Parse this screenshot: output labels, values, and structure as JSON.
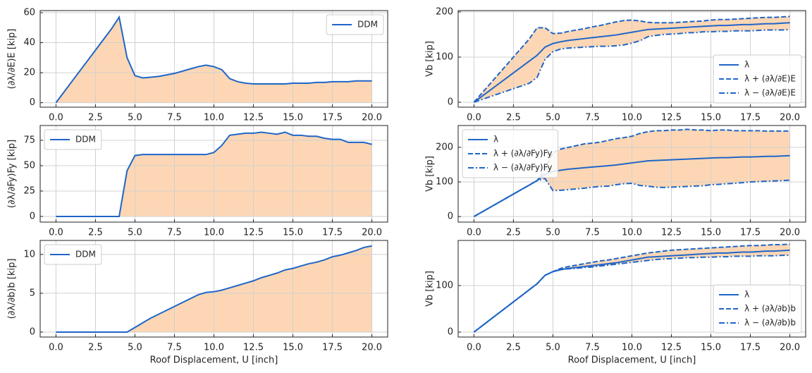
{
  "chart_data": [
    {
      "type": "line",
      "ylabel": "(∂λ/∂E)E [kip]",
      "x": [
        0,
        0.5,
        1,
        1.5,
        2,
        2.5,
        3,
        3.5,
        4,
        4.5,
        5,
        5.5,
        6,
        6.5,
        7,
        7.5,
        8,
        8.5,
        9,
        9.5,
        10,
        10.5,
        11,
        11.5,
        12,
        12.5,
        13,
        13.5,
        14,
        14.5,
        15,
        15.5,
        16,
        16.5,
        17,
        17.5,
        18,
        18.5,
        19,
        19.5,
        20
      ],
      "series": [
        {
          "name": "DDM",
          "color": "#1f66c8",
          "linestyle": "solid",
          "values": [
            0,
            7,
            14,
            21,
            28,
            35,
            42,
            49,
            57,
            30,
            18,
            16.5,
            17,
            17.5,
            18.5,
            19.5,
            21,
            22.5,
            24,
            25,
            24,
            22,
            16,
            14,
            13,
            12.5,
            12.5,
            12.5,
            12.5,
            12.5,
            13,
            13,
            13,
            13.5,
            13.5,
            14,
            14,
            14,
            14.5,
            14.5,
            14.5
          ]
        }
      ],
      "fill": "to_zero",
      "fill_color": "#fdd7b5",
      "xlim": [
        -1,
        21
      ],
      "xticks": [
        {
          "value": 0,
          "label": "0.0"
        },
        2.5,
        {
          "value": 5,
          "label": "5.0"
        },
        7.5,
        {
          "value": 10,
          "label": "10.0"
        },
        12.5,
        {
          "value": 15,
          "label": "15.0"
        },
        17.5,
        {
          "value": 20,
          "label": "20.0"
        }
      ],
      "ylim": [
        -3,
        61.4
      ],
      "yticks": [
        0,
        20,
        40,
        60
      ],
      "grid": true,
      "legend": "upper right"
    },
    {
      "type": "line",
      "ylabel": "Vb [kip]",
      "x": [
        0,
        0.5,
        1,
        1.5,
        2,
        2.5,
        3,
        3.5,
        4,
        4.5,
        5,
        5.5,
        6,
        6.5,
        7,
        7.5,
        8,
        8.5,
        9,
        9.5,
        10,
        10.5,
        11,
        11.5,
        12,
        12.5,
        13,
        13.5,
        14,
        14.5,
        15,
        15.5,
        16,
        16.5,
        17,
        17.5,
        18,
        18.5,
        19,
        19.5,
        20
      ],
      "series": [
        {
          "name": "λ",
          "color": "#1f66c8",
          "linestyle": "solid",
          "values": [
            0,
            13,
            26,
            39,
            52,
            65,
            78,
            91,
            104,
            122,
            130,
            134,
            137,
            139,
            141,
            143,
            145,
            147,
            149,
            152,
            155,
            158,
            161,
            162,
            163,
            164,
            165,
            166,
            167,
            168,
            169,
            170,
            170,
            171,
            172,
            172,
            173,
            174,
            174,
            175,
            176
          ]
        },
        {
          "name": "λ + (∂λ/∂E)E",
          "color": "#1f66c8",
          "linestyle": "dashed",
          "values": [
            0,
            20,
            40,
            60,
            80,
            100,
            120,
            140,
            165,
            165,
            152,
            153,
            157,
            160,
            163,
            167,
            170,
            174,
            178,
            181,
            182,
            180,
            177,
            176,
            176,
            176,
            177,
            178,
            179,
            180,
            182,
            183,
            183,
            184,
            185,
            186,
            187,
            188,
            188,
            189,
            190
          ]
        },
        {
          "name": "λ − (∂λ/∂E)E",
          "color": "#1f66c8",
          "linestyle": "dashdot",
          "values": [
            0,
            6,
            12,
            18,
            24,
            30,
            36,
            42,
            55,
            95,
            112,
            118,
            120,
            121,
            122,
            123,
            124,
            124,
            125,
            127,
            131,
            136,
            145,
            148,
            150,
            151,
            152,
            154,
            154,
            156,
            156,
            157,
            157,
            158,
            158,
            158,
            159,
            160,
            160,
            160,
            161
          ]
        }
      ],
      "fill": "between",
      "fill_between": [
        1,
        2
      ],
      "fill_color": "#fdd7b5",
      "xlim": [
        -1,
        21
      ],
      "xticks": [
        {
          "value": 0,
          "label": "0.0"
        },
        2.5,
        {
          "value": 5,
          "label": "5.0"
        },
        7.5,
        {
          "value": 10,
          "label": "10.0"
        },
        12.5,
        {
          "value": 15,
          "label": "15.0"
        },
        17.5,
        {
          "value": 20,
          "label": "20.0"
        }
      ],
      "ylim": [
        -11,
        203
      ],
      "yticks": [
        0,
        100,
        200
      ],
      "grid": true,
      "legend": "lower right"
    },
    {
      "type": "line",
      "ylabel": "(∂λ/∂Fy)Fy [kip]",
      "x": [
        0,
        0.5,
        1,
        1.5,
        2,
        2.5,
        3,
        3.5,
        4,
        4.5,
        5,
        5.5,
        6,
        6.5,
        7,
        7.5,
        8,
        8.5,
        9,
        9.5,
        10,
        10.5,
        11,
        11.5,
        12,
        12.5,
        13,
        13.5,
        14,
        14.5,
        15,
        15.5,
        16,
        16.5,
        17,
        17.5,
        18,
        18.5,
        19,
        19.5,
        20
      ],
      "series": [
        {
          "name": "DDM",
          "color": "#1f66c8",
          "linestyle": "solid",
          "values": [
            0,
            0,
            0,
            0,
            0,
            0,
            0,
            0,
            0,
            45,
            60,
            61,
            61,
            61,
            61,
            61,
            61,
            61,
            61,
            61,
            63,
            70,
            80,
            81,
            82,
            82,
            83,
            82,
            81,
            83,
            80,
            80,
            79,
            79,
            77,
            76,
            76,
            73,
            73,
            73,
            71
          ]
        }
      ],
      "fill": "to_zero",
      "fill_color": "#fdd7b5",
      "xlim": [
        -1,
        21
      ],
      "xticks": [
        {
          "value": 0,
          "label": "0.0"
        },
        2.5,
        {
          "value": 5,
          "label": "5.0"
        },
        7.5,
        {
          "value": 10,
          "label": "10.0"
        },
        12.5,
        {
          "value": 15,
          "label": "15.0"
        },
        17.5,
        {
          "value": 20,
          "label": "20.0"
        }
      ],
      "ylim": [
        -5.6,
        89.6
      ],
      "yticks": [
        0,
        25,
        50,
        75
      ],
      "grid": true,
      "legend": "upper left"
    },
    {
      "type": "line",
      "ylabel": "Vb [kip]",
      "x": [
        0,
        0.5,
        1,
        1.5,
        2,
        2.5,
        3,
        3.5,
        4,
        4.5,
        5,
        5.5,
        6,
        6.5,
        7,
        7.5,
        8,
        8.5,
        9,
        9.5,
        10,
        10.5,
        11,
        11.5,
        12,
        12.5,
        13,
        13.5,
        14,
        14.5,
        15,
        15.5,
        16,
        16.5,
        17,
        17.5,
        18,
        18.5,
        19,
        19.5,
        20
      ],
      "series": [
        {
          "name": "λ",
          "color": "#1f66c8",
          "linestyle": "solid",
          "values": [
            0,
            13,
            26,
            39,
            52,
            65,
            78,
            91,
            104,
            122,
            130,
            134,
            137,
            139,
            141,
            143,
            145,
            147,
            149,
            152,
            155,
            158,
            161,
            162,
            163,
            164,
            165,
            166,
            167,
            168,
            169,
            170,
            170,
            171,
            172,
            172,
            173,
            174,
            174,
            175,
            176
          ]
        },
        {
          "name": "λ + (∂λ/∂Fy)Fy",
          "color": "#1f66c8",
          "linestyle": "dashed",
          "values": [
            0,
            13,
            26,
            39,
            52,
            65,
            78,
            91,
            104,
            135,
            185,
            195,
            200,
            205,
            210,
            212,
            215,
            220,
            225,
            228,
            232,
            240,
            245,
            248,
            248,
            250,
            250,
            252,
            250,
            250,
            248,
            250,
            250,
            248,
            248,
            248,
            248,
            247,
            247,
            247,
            247
          ]
        },
        {
          "name": "λ − (∂λ/∂Fy)Fy",
          "color": "#1f66c8",
          "linestyle": "dashdot",
          "values": [
            0,
            13,
            26,
            39,
            52,
            65,
            78,
            91,
            104,
            110,
            75,
            76,
            78,
            80,
            82,
            85,
            87,
            88,
            92,
            95,
            96,
            90,
            88,
            85,
            84,
            85,
            86,
            87,
            88,
            89,
            92,
            93,
            95,
            96,
            98,
            100,
            101,
            102,
            103,
            104,
            105
          ]
        }
      ],
      "fill": "between",
      "fill_between": [
        1,
        2
      ],
      "fill_color": "#fdd7b5",
      "xlim": [
        -1,
        21
      ],
      "xticks": [
        {
          "value": 0,
          "label": "0.0"
        },
        2.5,
        {
          "value": 5,
          "label": "5.0"
        },
        7.5,
        {
          "value": 10,
          "label": "10.0"
        },
        12.5,
        {
          "value": 15,
          "label": "15.0"
        },
        17.5,
        {
          "value": 20,
          "label": "20.0"
        }
      ],
      "ylim": [
        -16,
        263
      ],
      "yticks": [
        0,
        100,
        200
      ],
      "grid": true,
      "legend": "upper left"
    },
    {
      "type": "line",
      "ylabel": "(∂λ/∂b)b [kip]",
      "xlabel": "Roof Displacement, U [inch]",
      "x": [
        0,
        0.5,
        1,
        1.5,
        2,
        2.5,
        3,
        3.5,
        4,
        4.5,
        5,
        5.5,
        6,
        6.5,
        7,
        7.5,
        8,
        8.5,
        9,
        9.5,
        10,
        10.5,
        11,
        11.5,
        12,
        12.5,
        13,
        13.5,
        14,
        14.5,
        15,
        15.5,
        16,
        16.5,
        17,
        17.5,
        18,
        18.5,
        19,
        19.5,
        20
      ],
      "series": [
        {
          "name": "DDM",
          "color": "#1f66c8",
          "linestyle": "solid",
          "values": [
            0,
            0,
            0,
            0,
            0,
            0,
            0,
            0,
            0,
            0,
            0.6,
            1.2,
            1.8,
            2.3,
            2.8,
            3.3,
            3.8,
            4.3,
            4.8,
            5.1,
            5.2,
            5.4,
            5.7,
            6.0,
            6.3,
            6.6,
            7.0,
            7.3,
            7.6,
            8.0,
            8.2,
            8.5,
            8.8,
            9.0,
            9.3,
            9.7,
            9.9,
            10.2,
            10.5,
            10.9,
            11.1
          ]
        }
      ],
      "fill": "to_zero",
      "fill_color": "#fdd7b5",
      "xlim": [
        -1,
        21
      ],
      "xticks": [
        {
          "value": 0,
          "label": "0.0"
        },
        2.5,
        {
          "value": 5,
          "label": "5.0"
        },
        7.5,
        {
          "value": 10,
          "label": "10.0"
        },
        12.5,
        {
          "value": 15,
          "label": "15.0"
        },
        17.5,
        {
          "value": 20,
          "label": "20.0"
        }
      ],
      "ylim": [
        -0.64,
        11.8
      ],
      "yticks": [
        0,
        5,
        10
      ],
      "grid": true,
      "legend": "upper left"
    },
    {
      "type": "line",
      "ylabel": "Vb [kip]",
      "xlabel": "Roof Displacement, U [inch]",
      "x": [
        0,
        0.5,
        1,
        1.5,
        2,
        2.5,
        3,
        3.5,
        4,
        4.5,
        5,
        5.5,
        6,
        6.5,
        7,
        7.5,
        8,
        8.5,
        9,
        9.5,
        10,
        10.5,
        11,
        11.5,
        12,
        12.5,
        13,
        13.5,
        14,
        14.5,
        15,
        15.5,
        16,
        16.5,
        17,
        17.5,
        18,
        18.5,
        19,
        19.5,
        20
      ],
      "series": [
        {
          "name": "λ",
          "color": "#1f66c8",
          "linestyle": "solid",
          "values": [
            0,
            13,
            26,
            39,
            52,
            65,
            78,
            91,
            104,
            122,
            130,
            134,
            137,
            139,
            141,
            143,
            145,
            147,
            149,
            152,
            155,
            158,
            161,
            162,
            163,
            164,
            165,
            166,
            167,
            168,
            169,
            170,
            170,
            171,
            172,
            172,
            173,
            174,
            174,
            175,
            176
          ]
        },
        {
          "name": "λ + (∂λ/∂b)b",
          "color": "#1f66c8",
          "linestyle": "dashed",
          "values": [
            0,
            13,
            26,
            39,
            52,
            65,
            78,
            91,
            104,
            122,
            130,
            137,
            141,
            144,
            147,
            150,
            153,
            155,
            158,
            161,
            164,
            167,
            170,
            172,
            174,
            176,
            177,
            178,
            179,
            180,
            181,
            182,
            183,
            184,
            185,
            186,
            186,
            187,
            188,
            188,
            189
          ]
        },
        {
          "name": "λ − (∂λ/∂b)b",
          "color": "#1f66c8",
          "linestyle": "dashdot",
          "values": [
            0,
            13,
            26,
            39,
            52,
            65,
            78,
            91,
            104,
            122,
            130,
            135,
            136,
            137,
            139,
            140,
            142,
            144,
            146,
            148,
            150,
            152,
            154,
            156,
            157,
            158,
            159,
            160,
            160,
            161,
            161,
            162,
            162,
            163,
            163,
            163,
            164,
            164,
            164,
            165,
            165
          ]
        }
      ],
      "fill": "between",
      "fill_between": [
        1,
        2
      ],
      "fill_color": "#fdd7b5",
      "xlim": [
        -1,
        21
      ],
      "xticks": [
        {
          "value": 0,
          "label": "0.0"
        },
        2.5,
        {
          "value": 5,
          "label": "5.0"
        },
        7.5,
        {
          "value": 10,
          "label": "10.0"
        },
        12.5,
        {
          "value": 15,
          "label": "15.0"
        },
        17.5,
        {
          "value": 20,
          "label": "20.0"
        }
      ],
      "ylim": [
        -10.6,
        197
      ],
      "yticks": [
        0,
        100
      ],
      "grid": true,
      "legend": "lower right"
    }
  ]
}
